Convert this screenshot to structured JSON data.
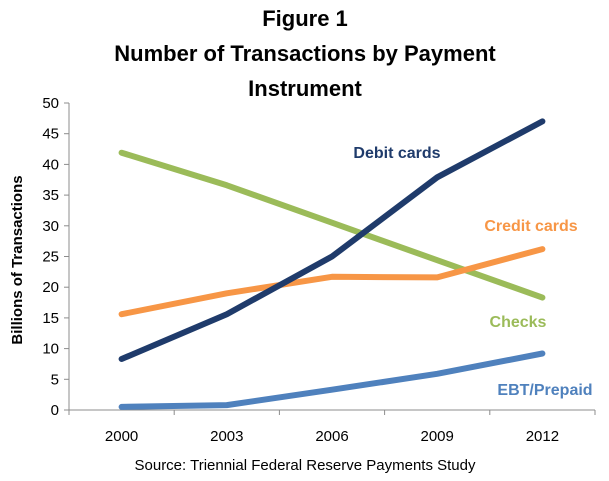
{
  "chart_data": {
    "type": "line",
    "title": [
      "Figure 1",
      "Number of Transactions by Payment",
      "Instrument"
    ],
    "xlabel": "",
    "ylabel": "Billions of Transactions",
    "categories": [
      "2000",
      "2003",
      "2006",
      "2009",
      "2012"
    ],
    "ylim": [
      0,
      50
    ],
    "yticks": [
      0,
      5,
      10,
      15,
      20,
      25,
      30,
      35,
      40,
      45,
      50
    ],
    "grid": false,
    "legend": "inline labels next to lines",
    "series": [
      {
        "name": "Debit cards",
        "values": [
          8.3,
          15.6,
          25.0,
          37.9,
          47.0
        ],
        "color": "#1f3b6b"
      },
      {
        "name": "Credit cards",
        "values": [
          15.6,
          19.0,
          21.7,
          21.6,
          26.2
        ],
        "color": "#f79646"
      },
      {
        "name": "Checks",
        "values": [
          41.9,
          36.6,
          30.5,
          24.4,
          18.3
        ],
        "color": "#9bbb59"
      },
      {
        "name": "EBT/Prepaid",
        "values": [
          0.5,
          0.8,
          3.3,
          5.9,
          9.2
        ],
        "color": "#4f81bd"
      }
    ],
    "source": "Source: Triennial Federal Reserve Payments Study"
  }
}
